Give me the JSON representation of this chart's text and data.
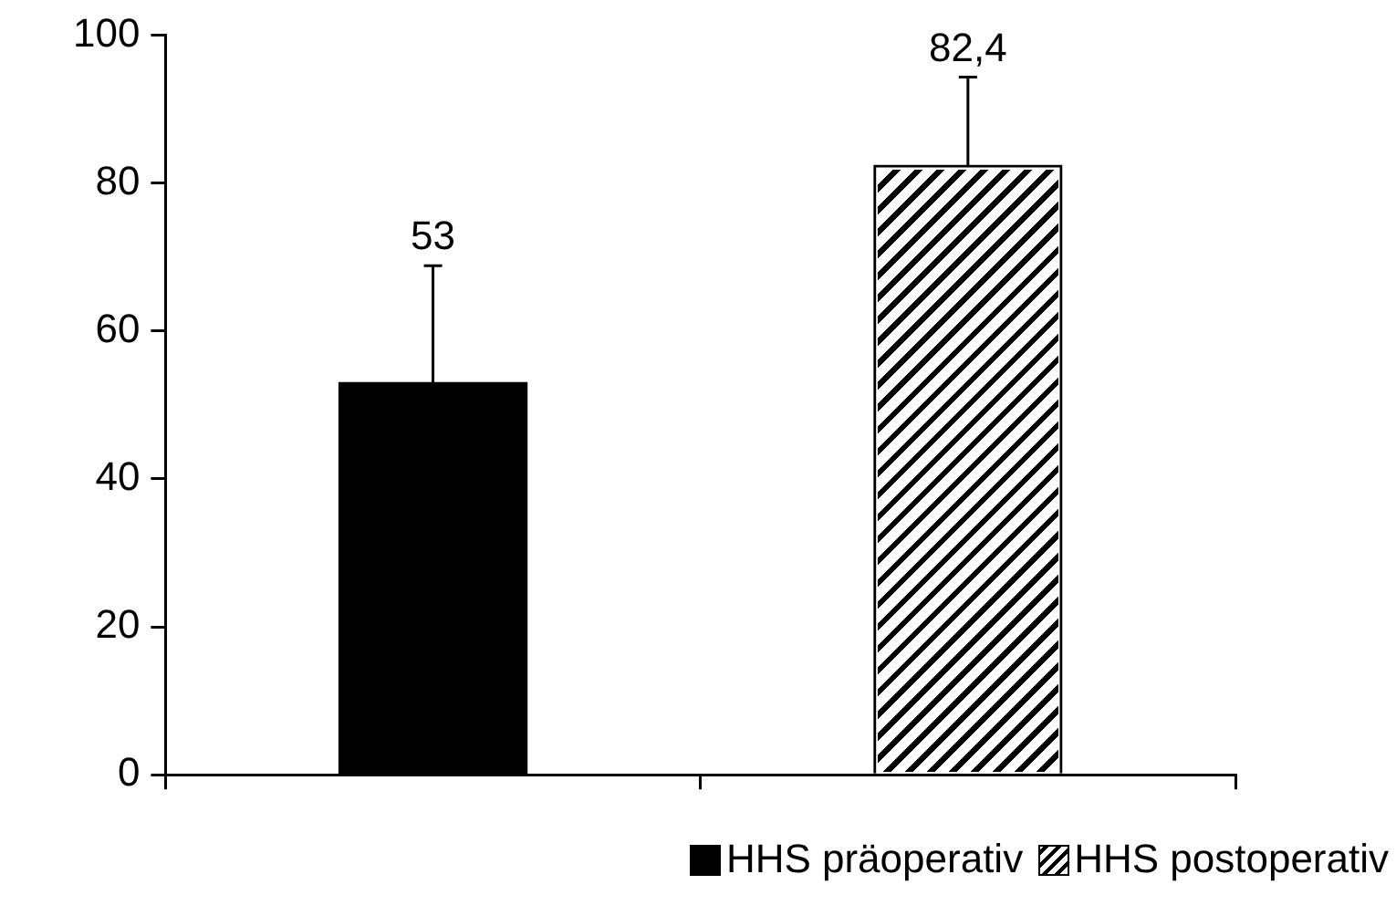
{
  "chart_data": {
    "type": "bar",
    "categories": [
      null,
      null
    ],
    "series": [
      {
        "name": "HHS präoperativ",
        "color": "#000000",
        "values": [
          53,
          null
        ],
        "errors": [
          [
            53,
            68.8
          ],
          null
        ],
        "value_labels": [
          "53",
          null
        ]
      },
      {
        "name": "HHS postoperativ",
        "color": "#ffffff",
        "values": [
          null,
          82.4
        ],
        "errors": [
          null,
          [
            82.4,
            94.3
          ]
        ],
        "value_labels": [
          null,
          "82,4"
        ]
      }
    ],
    "ylim": [
      0,
      100
    ],
    "yticks": [
      0,
      20,
      40,
      60,
      80,
      100
    ],
    "grid": false,
    "legend": "bottom"
  }
}
